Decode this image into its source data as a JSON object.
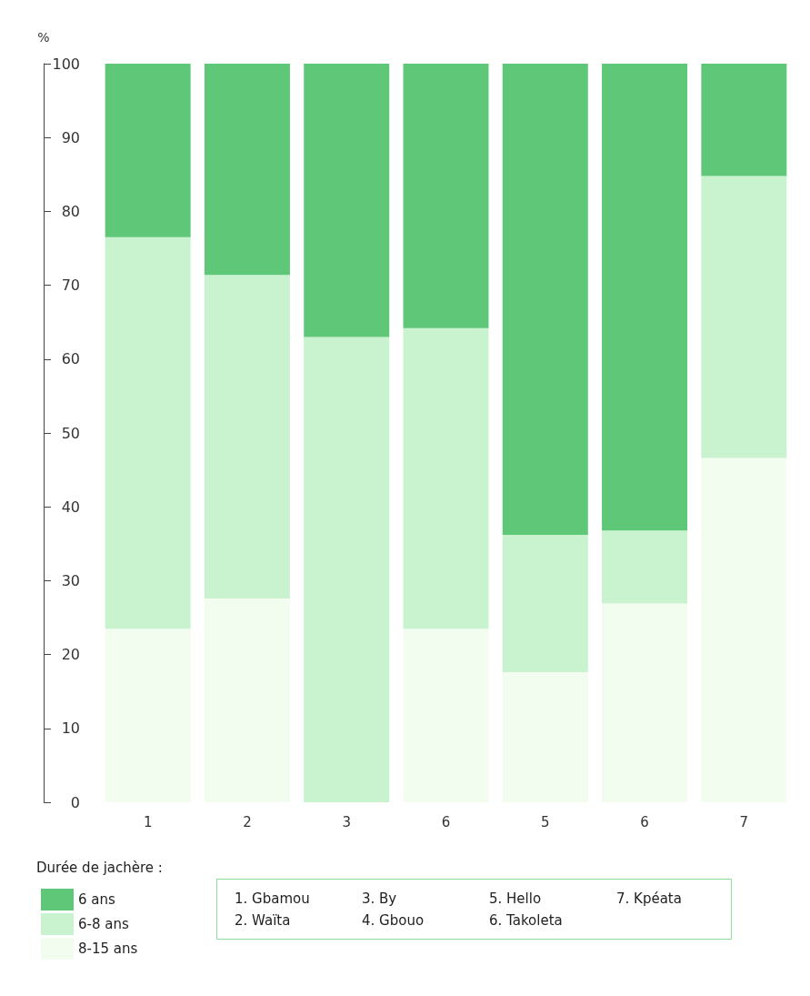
{
  "chart_data": {
    "type": "bar",
    "stacked": true,
    "ylabel": "%",
    "legend_title": "Durée de jachère :",
    "legend": "bottom left",
    "grid": false,
    "categories": [
      "1",
      "2",
      "3",
      "6",
      "5",
      "6",
      "7"
    ],
    "ylim": [
      0,
      100
    ],
    "yticks": [
      0,
      10,
      20,
      30,
      40,
      50,
      60,
      70,
      80,
      90,
      100
    ],
    "series": [
      {
        "name": "8-15 ans",
        "color": "#f2fcef",
        "values": [
          23.5,
          27.6,
          0,
          23.5,
          17.6,
          26.9,
          46.6
        ]
      },
      {
        "name": "6-8 ans",
        "color": "#c9f2cf",
        "values": [
          53,
          43.8,
          63,
          40.7,
          18.6,
          9.9,
          38.2
        ]
      },
      {
        "name": "6 ans",
        "color": "#5ec878",
        "values": [
          23.5,
          28.6,
          37,
          35.8,
          63.8,
          63.2,
          15.2
        ]
      }
    ],
    "annotations": [
      "1. Gbamou",
      "2. Waïta",
      "3. By",
      "4. Gbouo",
      "5. Hello",
      "6. Takoleta",
      "7. Kpéata"
    ]
  }
}
